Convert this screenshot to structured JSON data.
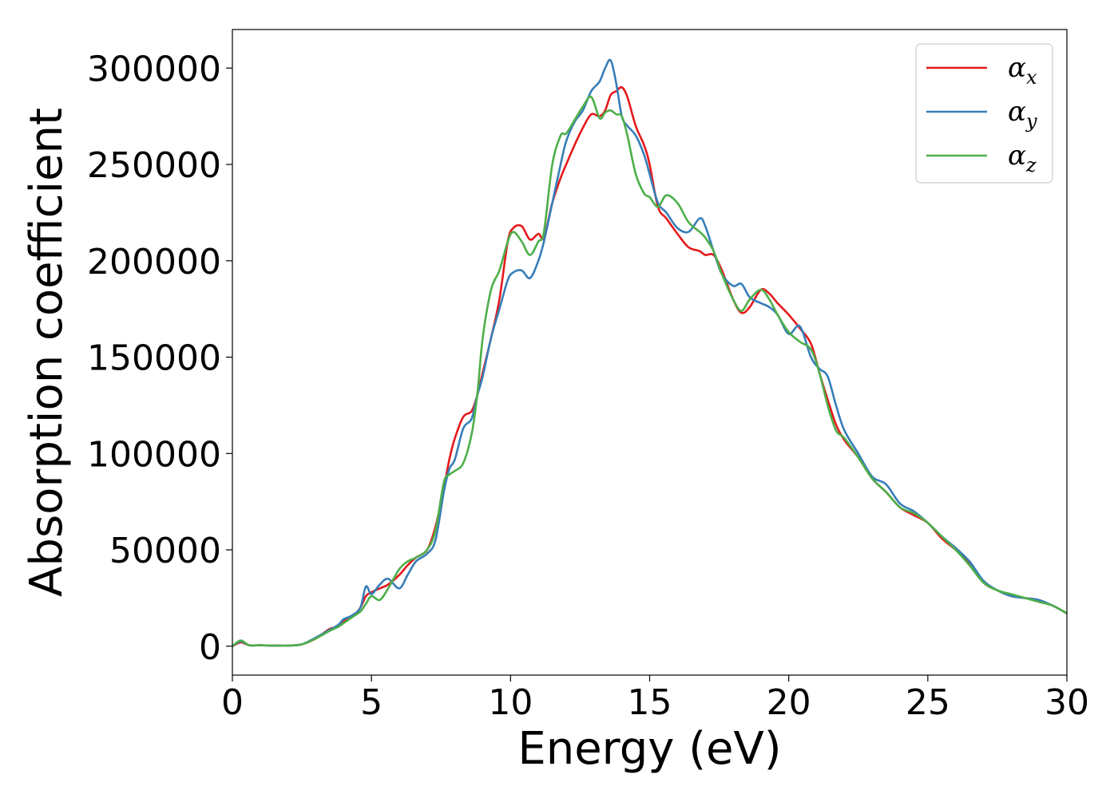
{
  "chart_data": {
    "type": "line",
    "title": "",
    "xlabel": "Energy (eV)",
    "ylabel": "Absorption coefficient",
    "xlim": [
      0,
      30
    ],
    "ylim": [
      -15000,
      320000
    ],
    "xticks": [
      0,
      5,
      10,
      15,
      20,
      25,
      30
    ],
    "xtick_labels": [
      "0",
      "5",
      "10",
      "15",
      "20",
      "25",
      "30"
    ],
    "yticks": [
      0,
      50000,
      100000,
      150000,
      200000,
      250000,
      300000
    ],
    "ytick_labels": [
      "0",
      "50000",
      "100000",
      "150000",
      "200000",
      "250000",
      "300000"
    ],
    "grid": false,
    "legend_position": "top-right",
    "series": [
      {
        "name": "α",
        "subscript": "x",
        "color": "#e41a1c",
        "x": [
          0,
          0.3,
          0.6,
          1.0,
          1.5,
          2.0,
          2.5,
          3.0,
          3.5,
          3.8,
          4.0,
          4.3,
          4.6,
          4.8,
          5.0,
          5.3,
          5.6,
          6.0,
          6.3,
          6.6,
          7.0,
          7.3,
          7.6,
          7.8,
          8.0,
          8.3,
          8.6,
          8.8,
          9.0,
          9.3,
          9.6,
          9.9,
          10.1,
          10.4,
          10.7,
          11.0,
          11.2,
          11.5,
          11.8,
          12.0,
          12.3,
          12.6,
          12.9,
          13.2,
          13.4,
          13.6,
          13.8,
          14.0,
          14.2,
          14.5,
          14.8,
          15.0,
          15.3,
          15.6,
          16.0,
          16.4,
          16.8,
          17.0,
          17.3,
          17.6,
          18.0,
          18.3,
          18.6,
          19.0,
          19.3,
          19.6,
          20.0,
          20.4,
          20.8,
          21.1,
          21.4,
          21.7,
          22.0,
          22.5,
          23.0,
          23.5,
          24.0,
          24.5,
          25.0,
          25.5,
          26.0,
          26.5,
          27.0,
          27.5,
          28.0,
          28.5,
          29.0,
          29.5,
          30.0
        ],
        "y": [
          0,
          2000,
          500,
          500,
          300,
          300,
          1000,
          4000,
          9000,
          10000,
          13000,
          15000,
          20000,
          26000,
          28000,
          30000,
          32000,
          37000,
          42000,
          46000,
          50000,
          62000,
          82000,
          97000,
          108000,
          119000,
          122000,
          130000,
          142000,
          160000,
          180000,
          210000,
          217000,
          218000,
          211000,
          214000,
          212000,
          230000,
          243000,
          250000,
          260000,
          269000,
          276000,
          275000,
          278000,
          286000,
          288000,
          290000,
          285000,
          270000,
          260000,
          250000,
          228000,
          222000,
          214000,
          207000,
          205000,
          203000,
          203000,
          195000,
          180000,
          173000,
          176000,
          185000,
          183000,
          178000,
          172000,
          165000,
          157000,
          142000,
          128000,
          115000,
          107000,
          98000,
          87000,
          80000,
          72000,
          68000,
          64000,
          56000,
          50000,
          43000,
          33000,
          29000,
          26000,
          25000,
          23000,
          21000,
          17000
        ]
      },
      {
        "name": "α",
        "subscript": "y",
        "color": "#377eb8",
        "x": [
          0,
          0.3,
          0.6,
          1.0,
          1.5,
          2.0,
          2.5,
          3.0,
          3.5,
          3.8,
          4.0,
          4.3,
          4.6,
          4.8,
          5.0,
          5.3,
          5.6,
          6.0,
          6.3,
          6.6,
          7.0,
          7.3,
          7.6,
          7.8,
          8.0,
          8.3,
          8.6,
          8.8,
          9.0,
          9.3,
          9.6,
          9.9,
          10.1,
          10.4,
          10.7,
          11.0,
          11.2,
          11.5,
          11.8,
          12.0,
          12.3,
          12.6,
          12.9,
          13.2,
          13.4,
          13.6,
          13.8,
          14.0,
          14.2,
          14.5,
          14.8,
          15.0,
          15.3,
          15.6,
          16.0,
          16.4,
          16.8,
          17.0,
          17.3,
          17.6,
          18.0,
          18.3,
          18.6,
          19.0,
          19.3,
          19.6,
          20.0,
          20.4,
          20.8,
          21.1,
          21.4,
          21.7,
          22.0,
          22.5,
          23.0,
          23.5,
          24.0,
          24.5,
          25.0,
          25.5,
          26.0,
          26.5,
          27.0,
          27.5,
          28.0,
          28.5,
          29.0,
          29.5,
          30.0
        ],
        "y": [
          0,
          2500,
          500,
          500,
          300,
          300,
          1000,
          4500,
          8500,
          11000,
          14000,
          16000,
          20000,
          31000,
          27000,
          32000,
          35000,
          30000,
          37000,
          44000,
          48000,
          55000,
          80000,
          92000,
          97000,
          113000,
          118000,
          130000,
          140000,
          160000,
          175000,
          190000,
          194000,
          195000,
          191000,
          200000,
          210000,
          230000,
          250000,
          262000,
          272000,
          278000,
          288000,
          293000,
          300000,
          304000,
          292000,
          275000,
          270000,
          265000,
          255000,
          245000,
          230000,
          225000,
          217000,
          215000,
          222000,
          218000,
          205000,
          193000,
          187000,
          188000,
          181000,
          178000,
          176000,
          172000,
          162000,
          166000,
          150000,
          144000,
          140000,
          125000,
          112000,
          100000,
          88000,
          84000,
          74000,
          70000,
          64000,
          57000,
          51000,
          44000,
          34000,
          29000,
          26000,
          25000,
          24000,
          21000,
          17000
        ]
      },
      {
        "name": "α",
        "subscript": "z",
        "color": "#4daf4a",
        "x": [
          0,
          0.3,
          0.6,
          1.0,
          1.5,
          2.0,
          2.5,
          3.0,
          3.5,
          3.8,
          4.0,
          4.3,
          4.6,
          4.8,
          5.0,
          5.3,
          5.6,
          6.0,
          6.3,
          6.6,
          7.0,
          7.3,
          7.6,
          7.8,
          8.0,
          8.3,
          8.6,
          8.8,
          9.0,
          9.3,
          9.6,
          9.9,
          10.1,
          10.4,
          10.7,
          11.0,
          11.2,
          11.5,
          11.8,
          12.0,
          12.3,
          12.6,
          12.9,
          13.2,
          13.4,
          13.6,
          13.8,
          14.0,
          14.2,
          14.5,
          14.8,
          15.0,
          15.3,
          15.6,
          16.0,
          16.4,
          16.8,
          17.0,
          17.3,
          17.6,
          18.0,
          18.3,
          18.6,
          19.0,
          19.3,
          19.6,
          20.0,
          20.4,
          20.8,
          21.1,
          21.4,
          21.7,
          22.0,
          22.5,
          23.0,
          23.5,
          24.0,
          24.5,
          25.0,
          25.5,
          26.0,
          26.5,
          27.0,
          27.5,
          28.0,
          28.5,
          29.0,
          29.5,
          30.0
        ],
        "y": [
          0,
          3000,
          500,
          500,
          300,
          300,
          1000,
          4000,
          8000,
          10000,
          12000,
          15000,
          18000,
          22000,
          26000,
          24000,
          30000,
          40000,
          44000,
          46000,
          50000,
          60000,
          85000,
          89000,
          91000,
          95000,
          110000,
          130000,
          160000,
          185000,
          195000,
          210000,
          215000,
          210000,
          203000,
          210000,
          215000,
          250000,
          265000,
          266000,
          273000,
          280000,
          285000,
          274000,
          277000,
          278000,
          276000,
          275000,
          265000,
          245000,
          235000,
          233000,
          228000,
          234000,
          230000,
          220000,
          215000,
          212000,
          205000,
          193000,
          180000,
          174000,
          180000,
          185000,
          180000,
          172000,
          163000,
          158000,
          154000,
          142000,
          125000,
          112000,
          108000,
          98000,
          87000,
          80000,
          72000,
          69000,
          64000,
          57000,
          50000,
          42000,
          33000,
          29000,
          27000,
          25000,
          23000,
          21000,
          17000
        ]
      }
    ]
  }
}
